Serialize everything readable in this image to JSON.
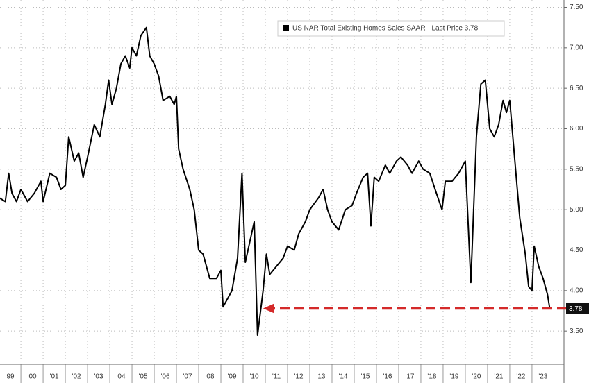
{
  "chart_data": {
    "type": "line",
    "series": [
      {
        "name": "US NAR Total Existing Homes Sales SAAR - Last Price 3.78",
        "color": "#000000",
        "x": [
          1999.0,
          1999.3,
          1999.45,
          1999.6,
          1999.8,
          2000.0,
          2000.3,
          2000.6,
          2000.9,
          2001.0,
          2001.3,
          2001.6,
          2001.8,
          2002.0,
          2002.15,
          2002.4,
          2002.6,
          2002.8,
          2003.0,
          2003.3,
          2003.55,
          2003.8,
          2003.95,
          2004.1,
          2004.3,
          2004.5,
          2004.7,
          2004.9,
          2005.0,
          2005.2,
          2005.4,
          2005.65,
          2005.8,
          2006.0,
          2006.2,
          2006.4,
          2006.7,
          2006.9,
          2007.0,
          2007.1,
          2007.3,
          2007.6,
          2007.8,
          2008.0,
          2008.2,
          2008.5,
          2008.8,
          2009.0,
          2009.1,
          2009.3,
          2009.5,
          2009.75,
          2009.95,
          2010.1,
          2010.3,
          2010.5,
          2010.65,
          2010.9,
          2011.05,
          2011.2,
          2011.5,
          2011.8,
          2012.0,
          2012.3,
          2012.5,
          2012.8,
          2013.0,
          2013.4,
          2013.6,
          2013.8,
          2014.0,
          2014.3,
          2014.6,
          2014.9,
          2015.1,
          2015.4,
          2015.6,
          2015.75,
          2015.9,
          2016.1,
          2016.4,
          2016.6,
          2016.9,
          2017.1,
          2017.4,
          2017.6,
          2017.9,
          2018.1,
          2018.4,
          2018.7,
          2018.95,
          2019.1,
          2019.4,
          2019.7,
          2019.9,
          2020.0,
          2020.25,
          2020.5,
          2020.7,
          2020.9,
          2021.1,
          2021.3,
          2021.5,
          2021.7,
          2021.85,
          2022.0,
          2022.2,
          2022.45,
          2022.7,
          2022.85,
          2023.0,
          2023.1,
          2023.3,
          2023.5,
          2023.7,
          2023.8
        ],
        "values": [
          5.15,
          5.1,
          5.45,
          5.2,
          5.1,
          5.25,
          5.1,
          5.2,
          5.35,
          5.1,
          5.45,
          5.4,
          5.25,
          5.3,
          5.9,
          5.6,
          5.7,
          5.4,
          5.65,
          6.05,
          5.9,
          6.3,
          6.6,
          6.3,
          6.5,
          6.8,
          6.9,
          6.75,
          7.0,
          6.9,
          7.15,
          7.25,
          6.9,
          6.8,
          6.65,
          6.35,
          6.4,
          6.3,
          6.4,
          5.75,
          5.5,
          5.25,
          5.0,
          4.5,
          4.45,
          4.15,
          4.15,
          4.25,
          3.8,
          3.9,
          4.0,
          4.4,
          5.45,
          4.35,
          4.6,
          4.85,
          3.45,
          4.0,
          4.45,
          4.2,
          4.3,
          4.4,
          4.55,
          4.5,
          4.7,
          4.85,
          5.0,
          5.15,
          5.25,
          5.0,
          4.85,
          4.75,
          5.0,
          5.05,
          5.2,
          5.4,
          5.45,
          4.8,
          5.4,
          5.35,
          5.55,
          5.45,
          5.6,
          5.65,
          5.55,
          5.45,
          5.6,
          5.5,
          5.45,
          5.2,
          5.0,
          5.35,
          5.35,
          5.45,
          5.55,
          5.6,
          4.1,
          5.9,
          6.55,
          6.6,
          6.0,
          5.9,
          6.05,
          6.35,
          6.2,
          6.35,
          5.7,
          4.9,
          4.45,
          4.05,
          4.0,
          4.55,
          4.3,
          4.15,
          3.95,
          3.78
        ]
      }
    ],
    "last_value_label": "3.78",
    "xlim": [
      1999.06,
      2024.44
    ],
    "xticks": [
      {
        "value": 1999,
        "label": "'99"
      },
      {
        "value": 2000,
        "label": "'00"
      },
      {
        "value": 2001,
        "label": "'01"
      },
      {
        "value": 2002,
        "label": "'02"
      },
      {
        "value": 2003,
        "label": "'03"
      },
      {
        "value": 2004,
        "label": "'04"
      },
      {
        "value": 2005,
        "label": "'05"
      },
      {
        "value": 2006,
        "label": "'06"
      },
      {
        "value": 2007,
        "label": "'07"
      },
      {
        "value": 2008,
        "label": "'08"
      },
      {
        "value": 2009,
        "label": "'09"
      },
      {
        "value": 2010,
        "label": "'10"
      },
      {
        "value": 2011,
        "label": "'11"
      },
      {
        "value": 2012,
        "label": "'12"
      },
      {
        "value": 2013,
        "label": "'13"
      },
      {
        "value": 2014,
        "label": "'14"
      },
      {
        "value": 2015,
        "label": "'15"
      },
      {
        "value": 2016,
        "label": "'16"
      },
      {
        "value": 2017,
        "label": "'17"
      },
      {
        "value": 2018,
        "label": "'18"
      },
      {
        "value": 2019,
        "label": "'19"
      },
      {
        "value": 2020,
        "label": "'20"
      },
      {
        "value": 2021,
        "label": "'21"
      },
      {
        "value": 2022,
        "label": "'22"
      },
      {
        "value": 2023,
        "label": "'23"
      }
    ],
    "ylim": [
      3.09,
      7.59
    ],
    "yticks": [
      {
        "value": 3.5,
        "label": "3.50"
      },
      {
        "value": 4,
        "label": "4.00"
      },
      {
        "value": 4.5,
        "label": "4.50"
      },
      {
        "value": 5,
        "label": "5.00"
      },
      {
        "value": 5.5,
        "label": "5.50"
      },
      {
        "value": 6,
        "label": "6.00"
      },
      {
        "value": 6.5,
        "label": "6.50"
      },
      {
        "value": 7,
        "label": "7.00"
      },
      {
        "value": 7.5,
        "label": "7.50"
      }
    ],
    "grid": true,
    "arrow_color": "#d42a2a"
  }
}
